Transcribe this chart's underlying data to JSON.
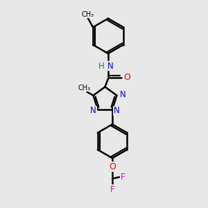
{
  "background_color": "#e8e8e8",
  "bond_color": "#000000",
  "bond_lw": 1.8,
  "figsize": [
    3.0,
    3.0
  ],
  "dpi": 100,
  "colors": {
    "N": "#0000ee",
    "O": "#ee0000",
    "F": "#dd00dd",
    "C": "#000000",
    "H": "#008888"
  },
  "fs": 8.0,
  "xlim": [
    -2.5,
    3.5
  ],
  "ylim": [
    -5.5,
    4.5
  ]
}
